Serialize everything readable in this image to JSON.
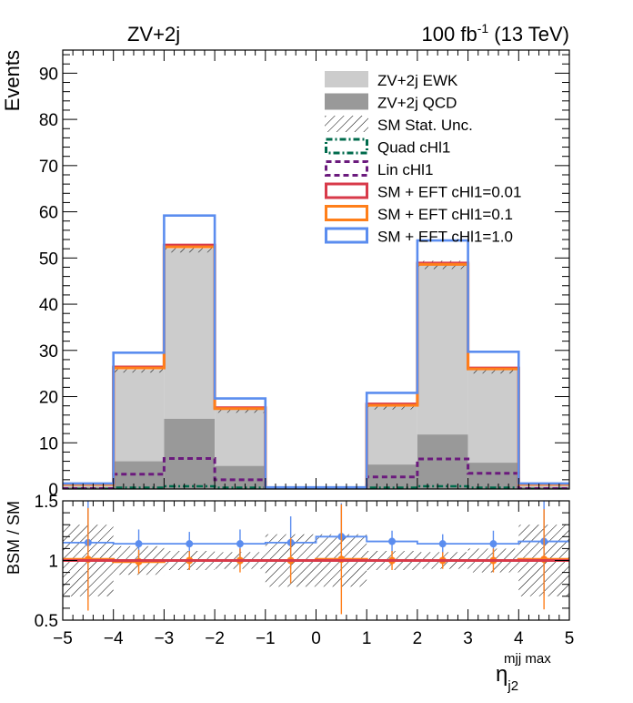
{
  "header": {
    "process": "ZV+2j",
    "lumi_value": "100 fb",
    "lumi_exp": "-1",
    "lumi_energy": " (13 TeV)"
  },
  "colors": {
    "ewk": "#cccccc",
    "qcd": "#999999",
    "quad": "#006b4c",
    "lin": "#6b1a7d",
    "eft001": "#d83a4a",
    "eft01": "#ff7f1a",
    "eft1": "#5b8def"
  },
  "legend": [
    {
      "key": "ewk",
      "label": "ZV+2j EWK",
      "style": "fill"
    },
    {
      "key": "qcd",
      "label": "ZV+2j QCD",
      "style": "fill"
    },
    {
      "key": "stat",
      "label": "SM Stat. Unc.",
      "style": "hatch"
    },
    {
      "key": "quad",
      "label": "Quad cHl1",
      "style": "dashdot"
    },
    {
      "key": "lin",
      "label": "Lin cHl1",
      "style": "dashed"
    },
    {
      "key": "eft001",
      "label": "SM + EFT cHl1=0.01",
      "style": "line"
    },
    {
      "key": "eft01",
      "label": "SM + EFT cHl1=0.1",
      "style": "line"
    },
    {
      "key": "eft1",
      "label": "SM + EFT cHl1=1.0",
      "style": "line"
    }
  ],
  "chart_data": [
    {
      "type": "bar",
      "ylabel": "Events",
      "xlim": [
        -5,
        5
      ],
      "ylim": [
        0,
        95
      ],
      "x_ticks": [
        -5,
        -4,
        -3,
        -2,
        -1,
        0,
        1,
        2,
        3,
        4,
        5
      ],
      "y_ticks": [
        0,
        10,
        20,
        30,
        40,
        50,
        60,
        70,
        80,
        90
      ],
      "bin_edges": [
        -5,
        -4,
        -3,
        -2,
        -1,
        0,
        1,
        2,
        3,
        4,
        5
      ],
      "series": [
        {
          "name": "ZV+2j QCD",
          "key": "qcd",
          "values": [
            0.4,
            6.0,
            15.2,
            5.0,
            0.2,
            0.2,
            5.3,
            11.8,
            5.7,
            0.4
          ]
        },
        {
          "name": "ZV+2j EWK",
          "key": "ewk",
          "values": [
            0.6,
            19.8,
            36.8,
            12.2,
            0.1,
            0.1,
            12.5,
            36.6,
            20.0,
            0.6
          ]
        },
        {
          "name": "Quad cHl1",
          "key": "quad",
          "values": [
            0.02,
            0.3,
            0.6,
            0.3,
            0.02,
            0.02,
            0.3,
            0.6,
            0.3,
            0.02
          ]
        },
        {
          "name": "Lin cHl1",
          "key": "lin",
          "values": [
            0.1,
            3.2,
            6.6,
            2.0,
            0.05,
            0.05,
            2.6,
            6.5,
            3.4,
            0.1
          ]
        },
        {
          "name": "SM + EFT cHl1=0.01",
          "key": "eft001",
          "values": [
            1.0,
            26.4,
            52.8,
            17.6,
            0.3,
            0.3,
            18.4,
            48.9,
            26.2,
            1.0
          ]
        },
        {
          "name": "SM + EFT cHl1=0.1",
          "key": "eft01",
          "values": [
            1.0,
            26.2,
            52.4,
            17.4,
            0.3,
            0.3,
            18.1,
            48.6,
            26.0,
            1.0
          ]
        },
        {
          "name": "SM + EFT cHl1=1.0",
          "key": "eft1",
          "values": [
            1.2,
            29.5,
            59.2,
            19.6,
            0.35,
            0.35,
            20.8,
            53.8,
            29.7,
            1.2
          ]
        }
      ],
      "stat_unc_total": [
        [
          0.9,
          1.1
        ],
        [
          25.2,
          26.4
        ],
        [
          51.2,
          53.0
        ],
        [
          16.5,
          17.6
        ],
        [
          0.2,
          0.4
        ],
        [
          0.2,
          0.4
        ],
        [
          17.2,
          18.4
        ],
        [
          47.6,
          49.4
        ],
        [
          25.0,
          26.2
        ],
        [
          0.9,
          1.1
        ]
      ]
    },
    {
      "type": "line",
      "ylabel": "BSM / SM",
      "xlabel_base": "η",
      "xlabel_sub": "j2",
      "xlabel_sup": "mjj max",
      "xlim": [
        -5,
        5
      ],
      "ylim": [
        0.5,
        1.5
      ],
      "y_ticks": [
        0.5,
        1,
        1.5
      ],
      "x_ticks": [
        -5,
        -4,
        -3,
        -2,
        -1,
        0,
        1,
        2,
        3,
        4,
        5
      ],
      "bin_centers": [
        -4.5,
        -3.5,
        -2.5,
        -1.5,
        -0.5,
        0.5,
        1.5,
        2.5,
        3.5,
        4.5
      ],
      "stat_band": [
        [
          0.7,
          1.3
        ],
        [
          0.88,
          1.12
        ],
        [
          0.92,
          1.08
        ],
        [
          0.93,
          1.07
        ],
        [
          0.78,
          1.22
        ],
        [
          0.78,
          1.22
        ],
        [
          0.92,
          1.08
        ],
        [
          0.93,
          1.07
        ],
        [
          0.9,
          1.1
        ],
        [
          0.7,
          1.3
        ]
      ],
      "series": [
        {
          "name": "SM + EFT cHl1=1.0",
          "key": "eft1",
          "values": [
            1.15,
            1.14,
            1.14,
            1.14,
            1.15,
            1.2,
            1.16,
            1.14,
            1.14,
            1.16
          ],
          "err": [
            0.48,
            0.12,
            0.1,
            0.12,
            0.22,
            0.28,
            0.09,
            0.08,
            0.11,
            0.45
          ]
        },
        {
          "name": "SM + EFT cHl1=0.1",
          "key": "eft01",
          "values": [
            1.01,
            0.99,
            1.0,
            1.0,
            1.0,
            1.01,
            1.0,
            1.0,
            1.0,
            1.01
          ],
          "err": [
            0.43,
            0.1,
            0.08,
            0.1,
            0.19,
            0.46,
            0.08,
            0.07,
            0.1,
            0.42
          ]
        },
        {
          "name": "SM + EFT cHl1=0.01",
          "key": "eft001",
          "values": [
            1.0,
            1.0,
            1.0,
            1.0,
            1.0,
            1.0,
            1.0,
            1.0,
            1.0,
            1.0
          ],
          "err": [
            0.0,
            0.0,
            0.0,
            0.0,
            0.0,
            0.0,
            0.0,
            0.0,
            0.0,
            0.0
          ]
        }
      ]
    }
  ]
}
